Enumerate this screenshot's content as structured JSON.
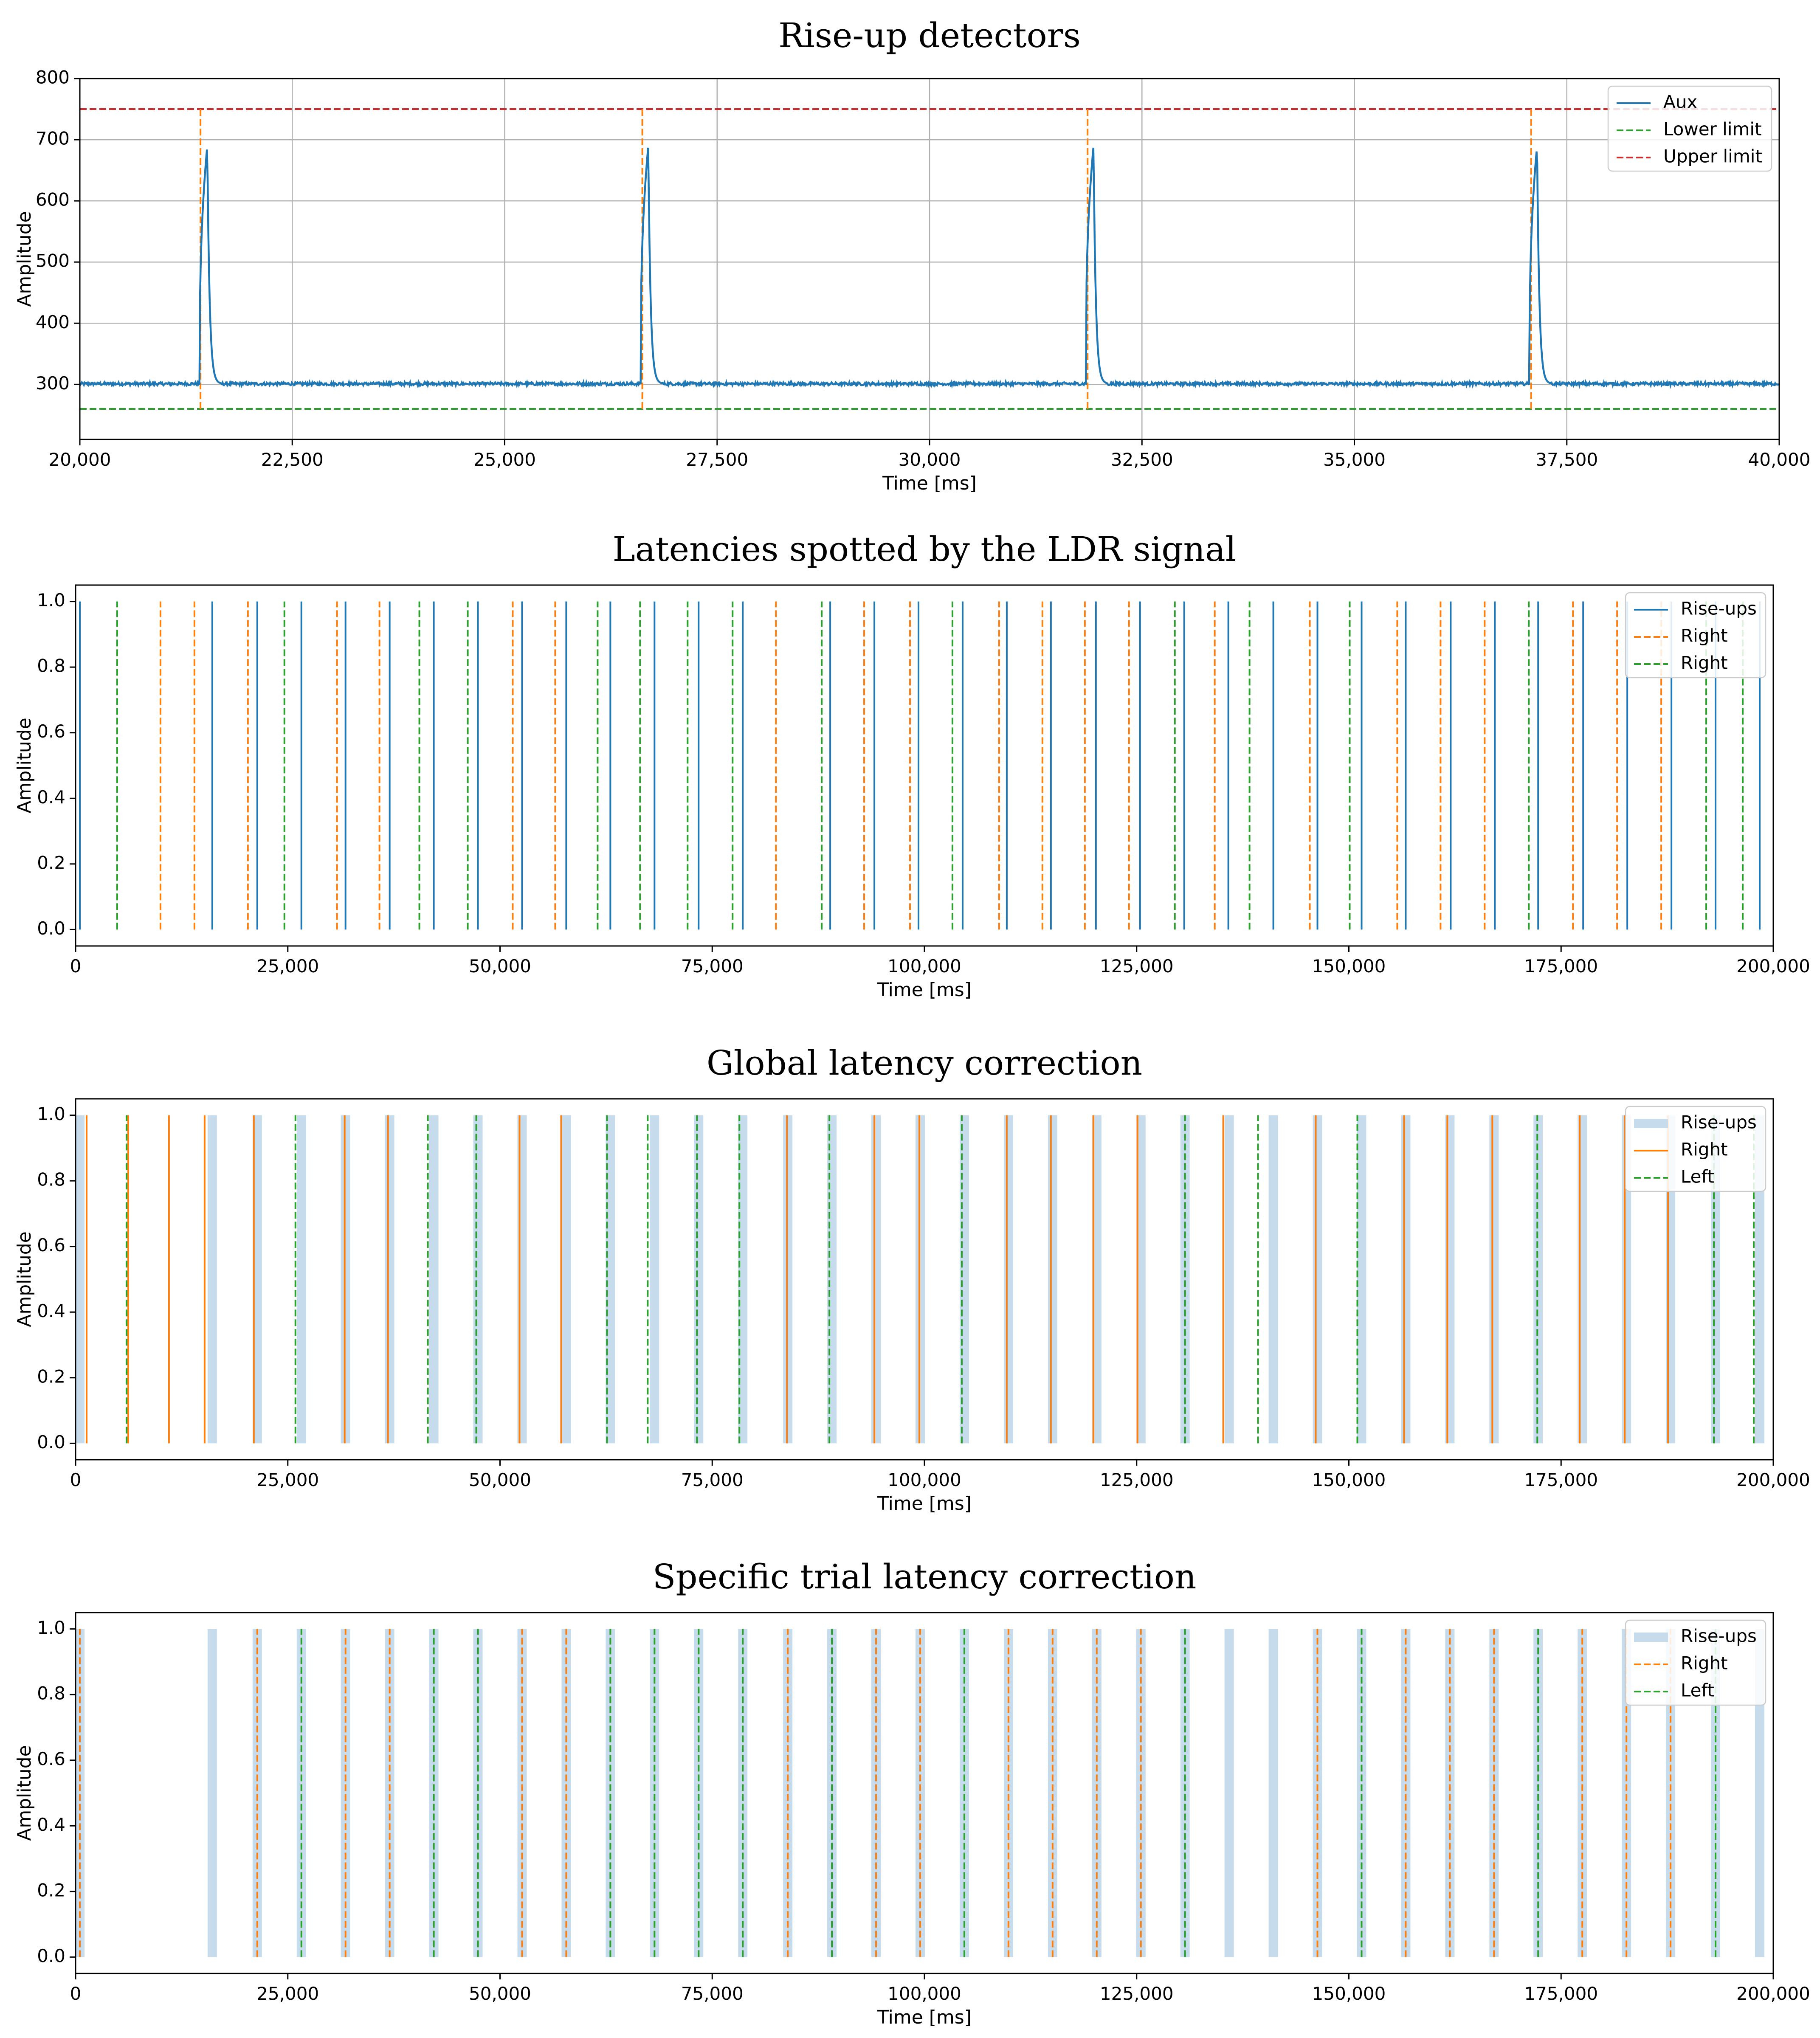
{
  "chart_data": [
    {
      "type": "line",
      "title": "Rise-up detectors",
      "xlabel": "Time [ms]",
      "ylabel": "Amplitude",
      "xlim": [
        20000,
        40000
      ],
      "ylim": [
        210,
        800
      ],
      "xticks": [
        20000,
        22500,
        25000,
        27500,
        30000,
        32500,
        35000,
        37500,
        40000
      ],
      "xtick_labels": [
        "20,000",
        "22,500",
        "25,000",
        "27,500",
        "30,000",
        "32,500",
        "35,000",
        "37,500",
        "40,000"
      ],
      "yticks": [
        300,
        400,
        500,
        600,
        700,
        800
      ],
      "ytick_labels": [
        "300",
        "400",
        "500",
        "600",
        "700",
        "800"
      ],
      "grid": true,
      "legend_position": "top-right",
      "series": [
        {
          "name": "Aux",
          "style": "solid",
          "color": "#1f77b4",
          "baseline": 301,
          "peaks": [
            21500,
            26690,
            31930,
            37150
          ],
          "peak_value": 690
        },
        {
          "name": "Lower limit",
          "style": "dashed",
          "color": "#2ca02c",
          "value": 260
        },
        {
          "name": "Upper limit",
          "style": "dashed",
          "color": "#d62728",
          "value": 750
        }
      ],
      "vlines": {
        "style": "dashed",
        "color": "#ff7f0e",
        "x": [
          21420,
          26620,
          31860,
          37080
        ],
        "from": 260,
        "to": 750
      }
    },
    {
      "type": "event",
      "title": "Latencies spotted by the LDR signal",
      "xlabel": "Time [ms]",
      "ylabel": "Amplitude",
      "xlim": [
        0,
        200000
      ],
      "ylim": [
        -0.05,
        1.05
      ],
      "xticks": [
        0,
        25000,
        50000,
        75000,
        100000,
        125000,
        150000,
        175000,
        200000
      ],
      "xtick_labels": [
        "0",
        "25,000",
        "50,000",
        "75,000",
        "100,000",
        "125,000",
        "150,000",
        "175,000",
        "200,000"
      ],
      "yticks": [
        0.0,
        0.2,
        0.4,
        0.6,
        0.8,
        1.0
      ],
      "ytick_labels": [
        "0.0",
        "0.2",
        "0.4",
        "0.6",
        "0.8",
        "1.0"
      ],
      "grid": false,
      "legend_position": "top-right",
      "series": [
        {
          "name": "Rise-ups",
          "style": "solid",
          "color": "#1f77b4",
          "width": 4,
          "x": [
            500,
            16100,
            21400,
            26600,
            31800,
            37000,
            42200,
            47400,
            52600,
            57800,
            63000,
            68200,
            73400,
            78600,
            88900,
            94100,
            99300,
            104500,
            109700,
            114900,
            120200,
            125400,
            130600,
            135800,
            141100,
            146300,
            151500,
            156700,
            162000,
            167200,
            172300,
            177600,
            182800,
            188000,
            193200,
            198400
          ]
        },
        {
          "name": "Right",
          "style": "dashed",
          "color": "#ff7f0e",
          "width": 4,
          "x": [
            10000,
            14000,
            20300,
            30800,
            35800,
            51500,
            56500,
            82500,
            92900,
            98300,
            108800,
            113900,
            118900,
            124100,
            134200,
            145400,
            155700,
            160800,
            166000,
            176400,
            181600,
            186800
          ]
        },
        {
          "name": "Right",
          "style": "dashed",
          "color": "#2ca02c",
          "width": 4,
          "x": [
            4900,
            24600,
            40500,
            46200,
            61500,
            66500,
            72100,
            77400,
            87900,
            103300,
            129500,
            138300,
            150100,
            171200,
            192100,
            196400
          ]
        }
      ]
    },
    {
      "type": "event",
      "title": "Global latency correction",
      "xlabel": "Time [ms]",
      "ylabel": "Amplitude",
      "xlim": [
        0,
        200000
      ],
      "ylim": [
        -0.05,
        1.05
      ],
      "xticks": [
        0,
        25000,
        50000,
        75000,
        100000,
        125000,
        150000,
        175000,
        200000
      ],
      "xtick_labels": [
        "0",
        "25,000",
        "50,000",
        "75,000",
        "100,000",
        "125,000",
        "150,000",
        "175,000",
        "200,000"
      ],
      "yticks": [
        0.0,
        0.2,
        0.4,
        0.6,
        0.8,
        1.0
      ],
      "ytick_labels": [
        "0.0",
        "0.2",
        "0.4",
        "0.6",
        "0.8",
        "1.0"
      ],
      "grid": false,
      "legend_position": "top-right",
      "series": [
        {
          "name": "Rise-ups",
          "style": "band",
          "color": "#c6dcec",
          "width": 22,
          "x": [
            500,
            16100,
            21400,
            26600,
            31800,
            37000,
            42200,
            47400,
            52600,
            57800,
            63000,
            68200,
            73400,
            78600,
            83900,
            89100,
            94300,
            99500,
            104700,
            109900,
            115100,
            120300,
            125500,
            130700,
            135900,
            141100,
            146300,
            151500,
            156700,
            161900,
            167100,
            172300,
            177500,
            182700,
            187900,
            193200,
            198400
          ]
        },
        {
          "name": "Right",
          "style": "solid",
          "color": "#ff7f0e",
          "width": 4,
          "x": [
            1300,
            6200,
            11000,
            15200,
            21000,
            31700,
            36800,
            52300,
            57200,
            83800,
            94100,
            99400,
            109700,
            114900,
            119900,
            125100,
            135200,
            146100,
            156500,
            161600,
            166900,
            177200,
            182500,
            187600
          ]
        },
        {
          "name": "Left",
          "style": "dashed",
          "color": "#2ca02c",
          "width": 4,
          "x": [
            6000,
            25900,
            41500,
            47200,
            62600,
            67400,
            73200,
            78200,
            88800,
            104400,
            130700,
            139300,
            151000,
            172200,
            193000,
            197700
          ]
        }
      ]
    },
    {
      "type": "event",
      "title": "Specific trial latency correction",
      "xlabel": "Time [ms]",
      "ylabel": "Amplitude",
      "xlim": [
        0,
        200000
      ],
      "ylim": [
        -0.05,
        1.05
      ],
      "xticks": [
        0,
        25000,
        50000,
        75000,
        100000,
        125000,
        150000,
        175000,
        200000
      ],
      "xtick_labels": [
        "0",
        "25,000",
        "50,000",
        "75,000",
        "100,000",
        "125,000",
        "150,000",
        "175,000",
        "200,000"
      ],
      "yticks": [
        0.0,
        0.2,
        0.4,
        0.6,
        0.8,
        1.0
      ],
      "ytick_labels": [
        "0.0",
        "0.2",
        "0.4",
        "0.6",
        "0.8",
        "1.0"
      ],
      "grid": false,
      "legend_position": "top-right",
      "series": [
        {
          "name": "Rise-ups",
          "style": "band",
          "color": "#c6dcec",
          "width": 22,
          "x": [
            500,
            16100,
            21400,
            26600,
            31800,
            37000,
            42200,
            47400,
            52600,
            57800,
            63000,
            68200,
            73400,
            78600,
            83900,
            89100,
            94300,
            99500,
            104700,
            109900,
            115100,
            120300,
            125500,
            130700,
            135900,
            141100,
            146300,
            151500,
            156700,
            161900,
            167100,
            172300,
            177500,
            182700,
            187900,
            193200,
            198400
          ]
        },
        {
          "name": "Right",
          "style": "dashed",
          "color": "#ff7f0e",
          "width": 4,
          "x": [
            500,
            21400,
            31800,
            37000,
            52600,
            57800,
            83900,
            94300,
            99500,
            109900,
            115100,
            120300,
            125500,
            146300,
            156700,
            161900,
            167100,
            177500,
            182700,
            187900
          ]
        },
        {
          "name": "Left",
          "style": "dashed",
          "color": "#2ca02c",
          "width": 4,
          "x": [
            26600,
            42200,
            47400,
            63000,
            68200,
            73400,
            78600,
            89100,
            104700,
            130700,
            151500,
            172300,
            193200
          ]
        }
      ]
    }
  ]
}
